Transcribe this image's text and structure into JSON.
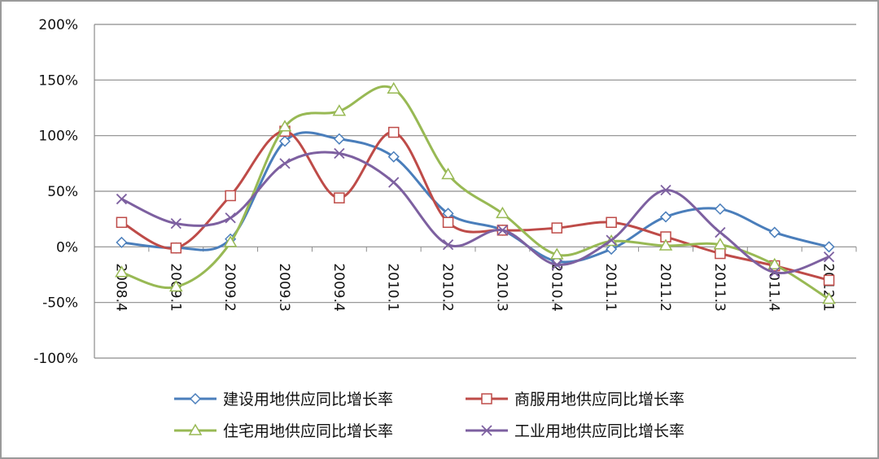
{
  "chart_data": {
    "type": "line",
    "categories": [
      "2008.4",
      "2009.1",
      "2009.2",
      "2009.3",
      "2009.4",
      "2010.1",
      "2010.2",
      "2010.3",
      "2010.4",
      "2011.1",
      "2011.2",
      "2011.3",
      "2011.4",
      "2012.1"
    ],
    "ylim": [
      -100,
      200
    ],
    "yticks": [
      200,
      150,
      100,
      50,
      0,
      -50,
      -100
    ],
    "ytick_labels": [
      "200%",
      "150%",
      "100%",
      "50%",
      "0%",
      "-50%",
      "-100%"
    ],
    "grid": true,
    "legend_position": "bottom",
    "series": [
      {
        "name": "建设用地供应同比增长率",
        "color": "#4a7ebb",
        "marker": "diamond",
        "values": [
          4,
          -1,
          7,
          95,
          97,
          81,
          30,
          15,
          -13,
          -2,
          27,
          34,
          13,
          0
        ]
      },
      {
        "name": "商服用地供应同比增长率",
        "color": "#be4b48",
        "marker": "square",
        "values": [
          22,
          -1,
          46,
          104,
          44,
          103,
          22,
          15,
          17,
          22,
          9,
          -6,
          -17,
          -30
        ]
      },
      {
        "name": "住宅用地供应同比增长率",
        "color": "#98b954",
        "marker": "triangle",
        "values": [
          -23,
          -36,
          4,
          108,
          122,
          142,
          65,
          30,
          -7,
          5,
          1,
          2,
          -16,
          -47
        ]
      },
      {
        "name": "工业用地供应同比增长率",
        "color": "#7d60a0",
        "marker": "x",
        "values": [
          43,
          21,
          26,
          75,
          84,
          58,
          2,
          15,
          -16,
          6,
          51,
          13,
          -23,
          -9
        ]
      }
    ]
  }
}
